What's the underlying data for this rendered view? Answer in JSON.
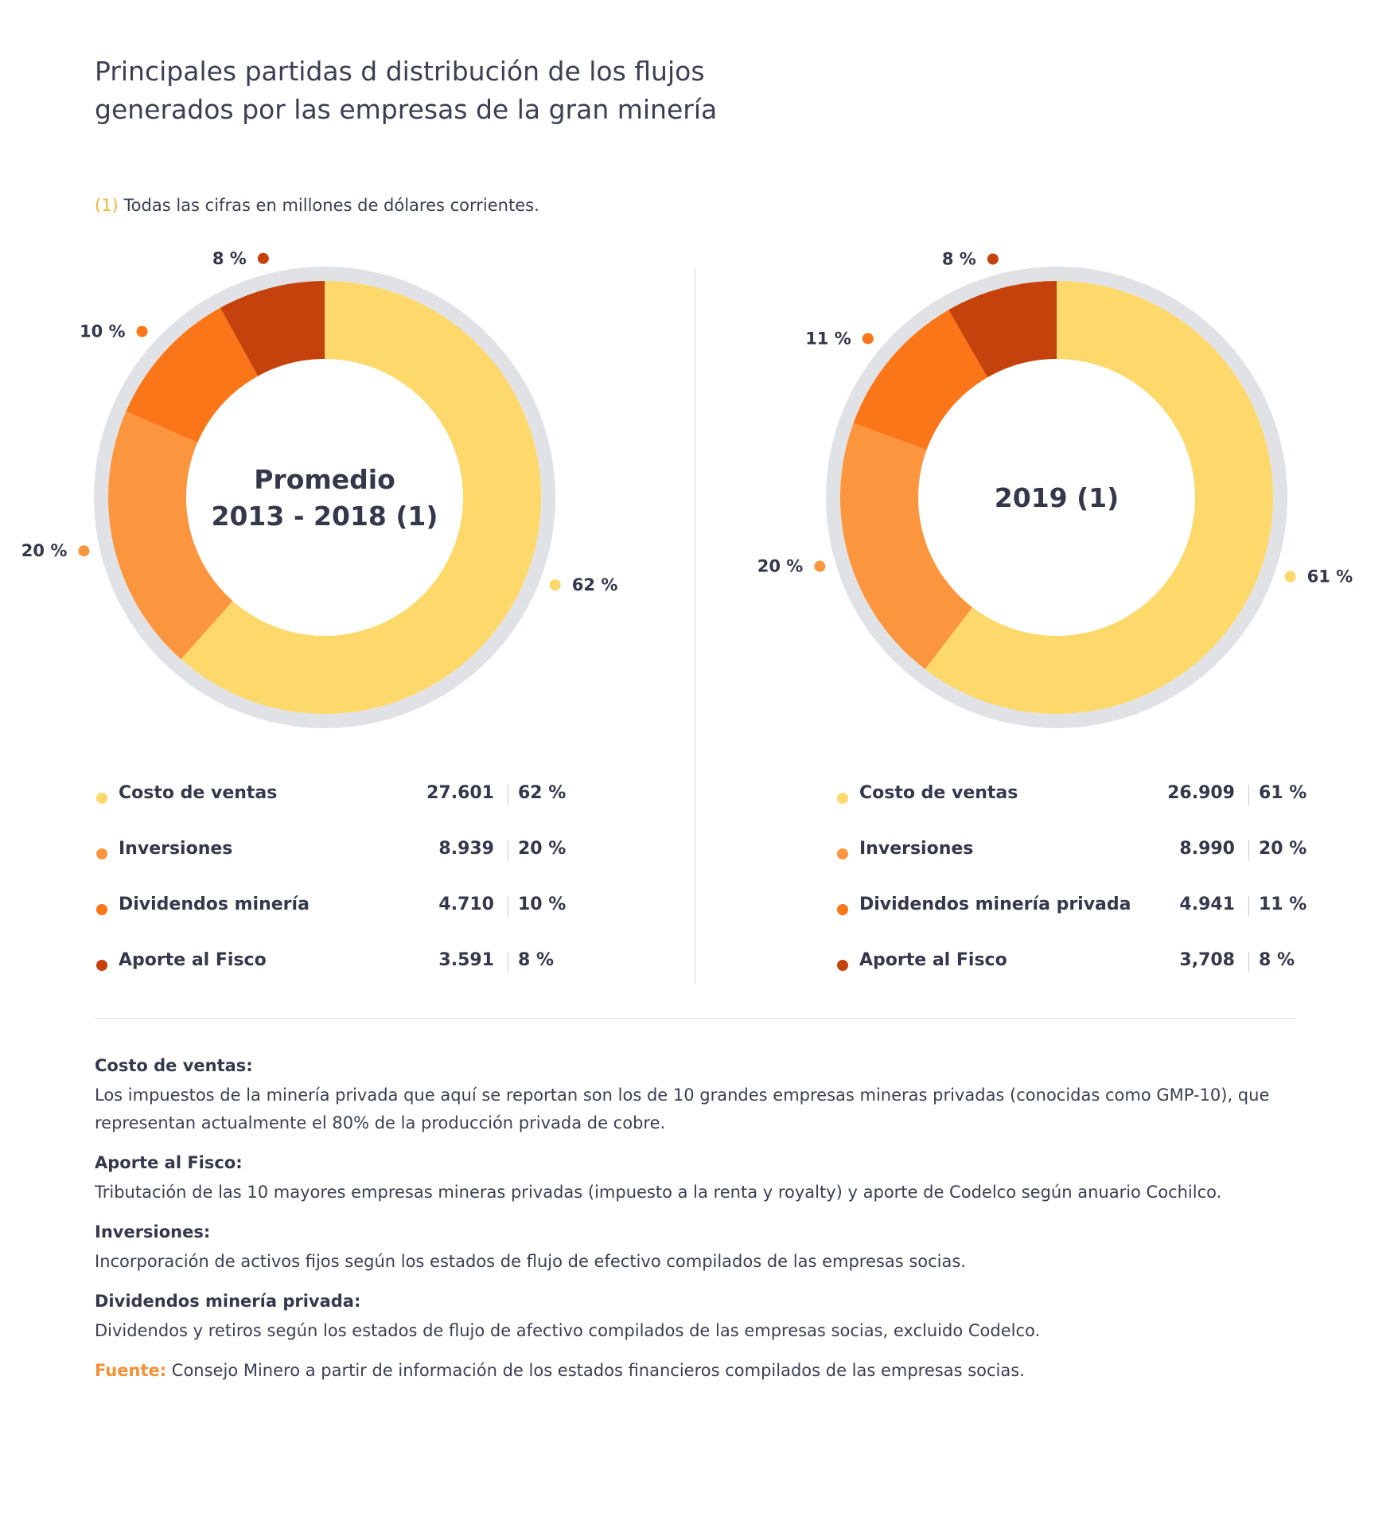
{
  "title": {
    "line1": "Principales partidas d distribución de los flujos",
    "line2": "generados por las empresas de la gran minería"
  },
  "note": {
    "ref": "(1)",
    "text": " Todas las cifras en millones de dólares corrientes."
  },
  "colors": {
    "costo": "#fdd86b",
    "inversiones": "#fb963f",
    "dividendos": "#fb7519",
    "fisco": "#c5420c",
    "ring": "#e1e2e6",
    "text": "#33394a"
  },
  "chart_data": [
    {
      "type": "pie",
      "center_label": [
        "Promedio",
        "2013 - 2018 (1)"
      ],
      "categories": [
        "Costo de ventas",
        "Inversiones",
        "Dividendos minería",
        "Aporte al Fisco"
      ],
      "values": [
        27601,
        8939,
        4710,
        3591
      ],
      "value_labels": [
        "27.601",
        "8.939",
        "4.710",
        "3.591"
      ],
      "percent_labels": [
        "62 %",
        "20 %",
        "10 %",
        "8 %"
      ]
    },
    {
      "type": "pie",
      "center_label": [
        "2019 (1)"
      ],
      "categories": [
        "Costo de ventas",
        "Inversiones",
        "Dividendos minería privada",
        "Aporte al Fisco"
      ],
      "values": [
        26909,
        8990,
        4941,
        3708
      ],
      "value_labels": [
        "26.909",
        "8.990",
        "4.941",
        "3,708"
      ],
      "percent_labels": [
        "61 %",
        "20 %",
        "11 %",
        "8 %"
      ]
    }
  ],
  "definitions": [
    {
      "term": "Costo de ventas:",
      "text": "Los impuestos de la minería privada que aquí se reportan son los de 10 grandes empresas mineras privadas (conocidas como GMP-10), que representan actualmente el 80% de la producción privada de cobre."
    },
    {
      "term": "Aporte al Fisco:",
      "text": "Tributación de las 10 mayores empresas mineras privadas (impuesto a la renta y royalty) y aporte de Codelco según anuario Cochilco."
    },
    {
      "term": "Inversiones:",
      "text": "Incorporación de activos fijos según los estados de flujo de efectivo compilados de las empresas socias."
    },
    {
      "term": "Dividendos minería privada:",
      "text": "Dividendos y retiros según los estados de flujo de afectivo compilados de las empresas socias, excluido Codelco."
    }
  ],
  "source": {
    "label": "Fuente:",
    "text": " Consejo Minero a partir de información de los estados financieros compilados de las empresas socias."
  }
}
